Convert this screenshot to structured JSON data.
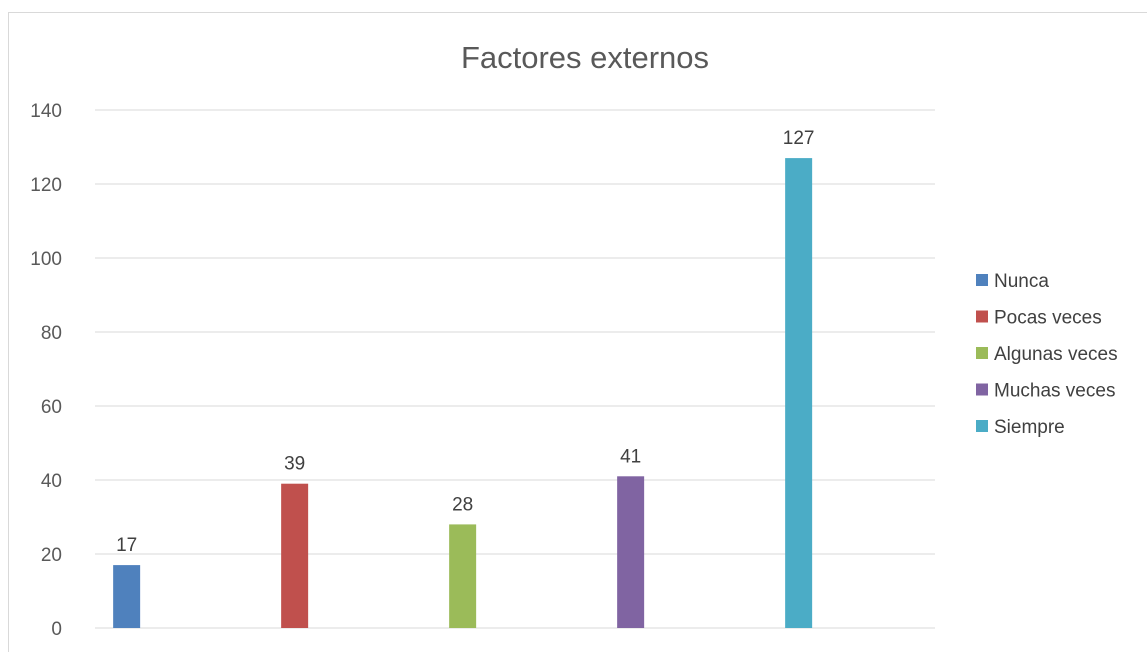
{
  "chart_data": {
    "type": "bar",
    "title": "Factores externos",
    "xlabel": "",
    "ylabel": "",
    "ylim": [
      0,
      140
    ],
    "yticks": [
      0,
      20,
      40,
      60,
      80,
      100,
      120,
      140
    ],
    "ytick_labels": [
      "0",
      "20",
      "40",
      "60",
      "80",
      "100",
      "120",
      "140"
    ],
    "grid": true,
    "legend_position": "right",
    "series": [
      {
        "name": "Nunca",
        "value": 17,
        "label": "17",
        "color": "#4f81bd"
      },
      {
        "name": "Pocas veces",
        "value": 39,
        "label": "39",
        "color": "#c0504d"
      },
      {
        "name": "Algunas veces",
        "value": 28,
        "label": "28",
        "color": "#9bbb59"
      },
      {
        "name": "Muchas veces",
        "value": 41,
        "label": "41",
        "color": "#8064a2"
      },
      {
        "name": "Siempre",
        "value": 127,
        "label": "127",
        "color": "#4bacc6"
      }
    ]
  }
}
